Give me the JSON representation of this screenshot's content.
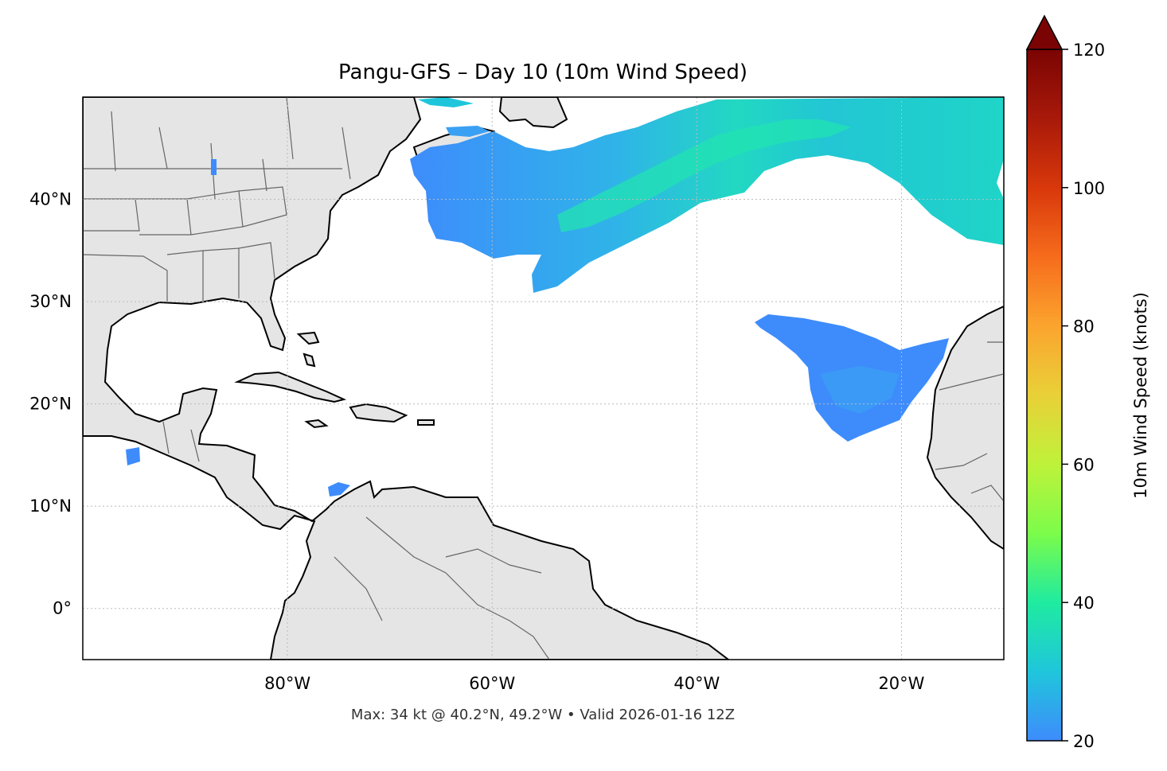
{
  "title": "Pangu-GFS – Day 10 (10m Wind Speed)",
  "footer": "Max: 34 kt @ 40.2°N, 49.2°W • Valid 2026-01-16 12Z",
  "map": {
    "lon_range": [
      -100,
      -10
    ],
    "lat_range": [
      -5,
      50
    ],
    "lon_ticks": [
      {
        "value": -80,
        "label": "80°W"
      },
      {
        "value": -60,
        "label": "60°W"
      },
      {
        "value": -40,
        "label": "40°W"
      },
      {
        "value": -20,
        "label": "20°W"
      }
    ],
    "lat_ticks": [
      {
        "value": 0,
        "label": "0°"
      },
      {
        "value": 10,
        "label": "10°N"
      },
      {
        "value": 20,
        "label": "20°N"
      },
      {
        "value": 30,
        "label": "30°N"
      },
      {
        "value": 40,
        "label": "40°N"
      }
    ],
    "gridlines": true,
    "land_color": "#e5e5e5",
    "ocean_color": "#ffffff",
    "coastline_color": "#000000",
    "border_color": "#666666"
  },
  "colorbar": {
    "label": "10m Wind Speed (knots)",
    "min": 20,
    "max": 120,
    "extend": "max",
    "ticks": [
      {
        "value": 20,
        "label": "20"
      },
      {
        "value": 40,
        "label": "40"
      },
      {
        "value": 60,
        "label": "60"
      },
      {
        "value": 80,
        "label": "80"
      },
      {
        "value": 100,
        "label": "100"
      },
      {
        "value": 120,
        "label": "120"
      }
    ],
    "colormap": [
      {
        "stop": 0.0,
        "color": "#3e8cfc"
      },
      {
        "stop": 0.1,
        "color": "#1fc6db"
      },
      {
        "stop": 0.2,
        "color": "#1feba0"
      },
      {
        "stop": 0.3,
        "color": "#7cfc4a"
      },
      {
        "stop": 0.4,
        "color": "#bff23a"
      },
      {
        "stop": 0.5,
        "color": "#e9d038"
      },
      {
        "stop": 0.6,
        "color": "#fba42e"
      },
      {
        "stop": 0.7,
        "color": "#f66c1c"
      },
      {
        "stop": 0.8,
        "color": "#d8380b"
      },
      {
        "stop": 0.9,
        "color": "#a8190a"
      },
      {
        "stop": 1.0,
        "color": "#7a0403"
      }
    ]
  },
  "max_wind": {
    "value_kt": 34,
    "lat": 40.2,
    "lon": -49.2
  }
}
